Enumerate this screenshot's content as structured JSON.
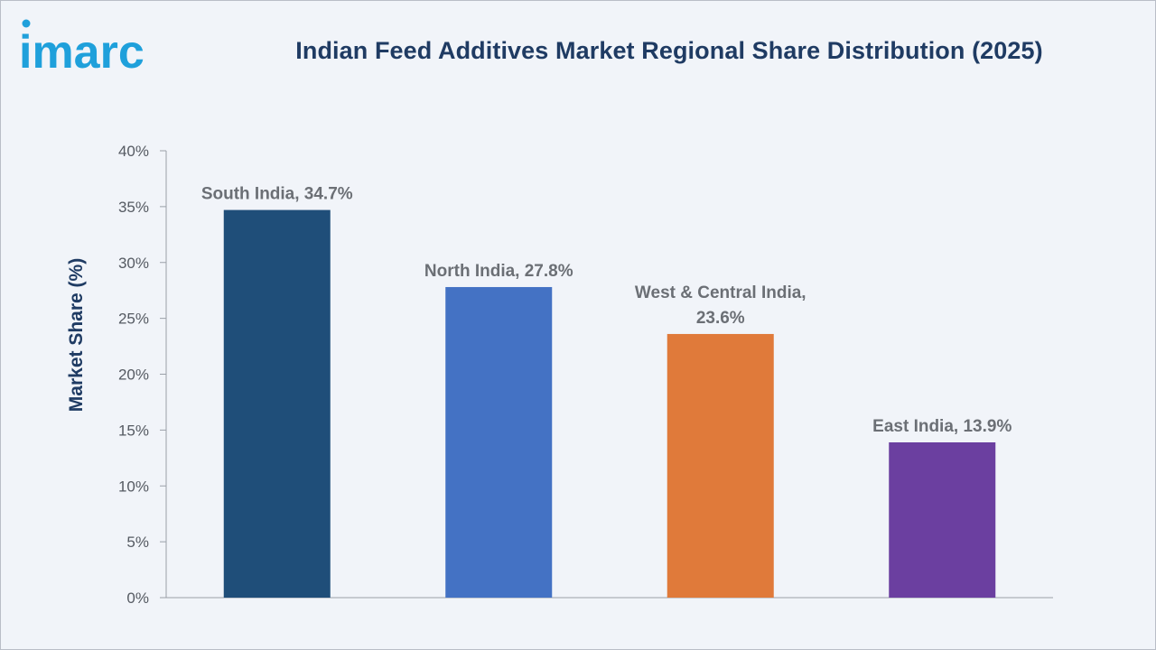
{
  "brand": {
    "logo_text": "imarc"
  },
  "chart_data": {
    "type": "bar",
    "title": "Indian Feed Additives Market Regional Share Distribution (2025)",
    "xlabel": "",
    "ylabel": "Market Share (%)",
    "ylim": [
      0,
      40
    ],
    "ytick_step": 5,
    "ytick_suffix": "%",
    "grid": false,
    "categories": [
      "South India",
      "North India",
      "West & Central India",
      "East India"
    ],
    "values": [
      34.7,
      27.8,
      23.6,
      13.9
    ],
    "colors": [
      "#1f4e79",
      "#4472c4",
      "#e07a3a",
      "#6b3fa0"
    ],
    "data_labels": [
      [
        "South India, 34.7%"
      ],
      [
        "North India, 27.8%"
      ],
      [
        "West & Central India,",
        "23.6%"
      ],
      [
        "East India, 13.9%"
      ]
    ]
  }
}
